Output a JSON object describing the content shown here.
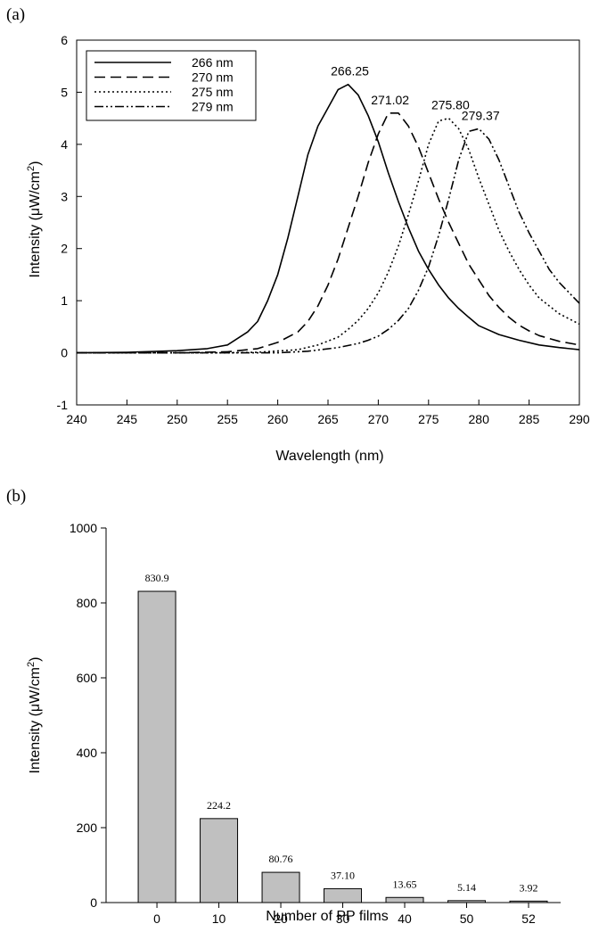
{
  "chart_data": [
    {
      "panel_label": "(a)",
      "type": "line",
      "xlabel": "Wavelength (nm)",
      "ylabel_main": "Intensity (μW/cm",
      "ylabel_sup": "2",
      "ylabel_close": ")",
      "xlim": [
        240,
        290
      ],
      "ylim": [
        -1,
        6
      ],
      "xticks": [
        "240",
        "245",
        "250",
        "255",
        "260",
        "265",
        "270",
        "275",
        "280",
        "285",
        "290"
      ],
      "yticks": [
        "-1",
        "0",
        "1",
        "2",
        "3",
        "4",
        "5",
        "6"
      ],
      "legend_position": "top-left",
      "series": [
        {
          "name": "266 nm",
          "style": "solid",
          "peak_label": "266.25",
          "points": [
            [
              240,
              0
            ],
            [
              245,
              0.01
            ],
            [
              250,
              0.04
            ],
            [
              253,
              0.08
            ],
            [
              255,
              0.15
            ],
            [
              257,
              0.4
            ],
            [
              258,
              0.6
            ],
            [
              259,
              1.0
            ],
            [
              260,
              1.5
            ],
            [
              261,
              2.2
            ],
            [
              262,
              3.0
            ],
            [
              263,
              3.8
            ],
            [
              264,
              4.35
            ],
            [
              265,
              4.7
            ],
            [
              266,
              5.05
            ],
            [
              267,
              5.15
            ],
            [
              268,
              4.95
            ],
            [
              269,
              4.55
            ],
            [
              270,
              4.05
            ],
            [
              271,
              3.45
            ],
            [
              272,
              2.9
            ],
            [
              273,
              2.4
            ],
            [
              274,
              1.95
            ],
            [
              275,
              1.6
            ],
            [
              276,
              1.3
            ],
            [
              277,
              1.05
            ],
            [
              278,
              0.85
            ],
            [
              279,
              0.68
            ],
            [
              280,
              0.52
            ],
            [
              282,
              0.35
            ],
            [
              284,
              0.24
            ],
            [
              286,
              0.15
            ],
            [
              288,
              0.1
            ],
            [
              290,
              0.06
            ]
          ]
        },
        {
          "name": "270 nm",
          "style": "dashed",
          "peak_label": "271.02",
          "points": [
            [
              240,
              0
            ],
            [
              250,
              0
            ],
            [
              255,
              0.02
            ],
            [
              258,
              0.08
            ],
            [
              260,
              0.2
            ],
            [
              262,
              0.4
            ],
            [
              263,
              0.6
            ],
            [
              264,
              0.9
            ],
            [
              265,
              1.3
            ],
            [
              266,
              1.8
            ],
            [
              267,
              2.4
            ],
            [
              268,
              3.0
            ],
            [
              269,
              3.65
            ],
            [
              270,
              4.2
            ],
            [
              271,
              4.6
            ],
            [
              272,
              4.6
            ],
            [
              273,
              4.35
            ],
            [
              274,
              3.95
            ],
            [
              275,
              3.45
            ],
            [
              276,
              2.95
            ],
            [
              277,
              2.5
            ],
            [
              278,
              2.1
            ],
            [
              279,
              1.7
            ],
            [
              280,
              1.4
            ],
            [
              281,
              1.1
            ],
            [
              282,
              0.87
            ],
            [
              283,
              0.68
            ],
            [
              284,
              0.53
            ],
            [
              285,
              0.42
            ],
            [
              286,
              0.33
            ],
            [
              288,
              0.22
            ],
            [
              290,
              0.15
            ]
          ]
        },
        {
          "name": "275 nm",
          "style": "dotted",
          "peak_label": "275.80",
          "points": [
            [
              240,
              0
            ],
            [
              255,
              0
            ],
            [
              258,
              0.01
            ],
            [
              262,
              0.06
            ],
            [
              264,
              0.15
            ],
            [
              266,
              0.3
            ],
            [
              267,
              0.45
            ],
            [
              268,
              0.62
            ],
            [
              269,
              0.85
            ],
            [
              270,
              1.15
            ],
            [
              271,
              1.55
            ],
            [
              272,
              2.05
            ],
            [
              273,
              2.65
            ],
            [
              274,
              3.3
            ],
            [
              275,
              4.0
            ],
            [
              276,
              4.45
            ],
            [
              277,
              4.5
            ],
            [
              278,
              4.3
            ],
            [
              279,
              3.9
            ],
            [
              280,
              3.35
            ],
            [
              281,
              2.85
            ],
            [
              282,
              2.35
            ],
            [
              283,
              1.95
            ],
            [
              284,
              1.6
            ],
            [
              285,
              1.3
            ],
            [
              286,
              1.05
            ],
            [
              287,
              0.9
            ],
            [
              288,
              0.75
            ],
            [
              289,
              0.65
            ],
            [
              290,
              0.55
            ]
          ]
        },
        {
          "name": "279 nm",
          "style": "dashdotdot",
          "peak_label": "279.37",
          "points": [
            [
              240,
              0
            ],
            [
              260,
              0
            ],
            [
              263,
              0.03
            ],
            [
              266,
              0.1
            ],
            [
              268,
              0.18
            ],
            [
              269,
              0.24
            ],
            [
              270,
              0.32
            ],
            [
              271,
              0.45
            ],
            [
              272,
              0.62
            ],
            [
              273,
              0.85
            ],
            [
              274,
              1.2
            ],
            [
              275,
              1.65
            ],
            [
              276,
              2.25
            ],
            [
              277,
              2.95
            ],
            [
              278,
              3.7
            ],
            [
              279,
              4.25
            ],
            [
              280,
              4.3
            ],
            [
              281,
              4.1
            ],
            [
              282,
              3.7
            ],
            [
              283,
              3.2
            ],
            [
              284,
              2.7
            ],
            [
              285,
              2.3
            ],
            [
              286,
              1.95
            ],
            [
              287,
              1.6
            ],
            [
              288,
              1.35
            ],
            [
              289,
              1.15
            ],
            [
              290,
              0.95
            ]
          ]
        }
      ]
    },
    {
      "panel_label": "(b)",
      "type": "bar",
      "xlabel": "Number of PP films",
      "ylabel_main": "Intensity (μW/cm",
      "ylabel_sup": "2",
      "ylabel_close": ")",
      "categories": [
        "0",
        "10",
        "20",
        "30",
        "40",
        "50",
        "52"
      ],
      "values": [
        830.9,
        224.2,
        80.76,
        37.1,
        13.65,
        5.14,
        3.92
      ],
      "value_labels": [
        "830.9",
        "224.2",
        "80.76",
        "37.10",
        "13.65",
        "5.14",
        "3.92"
      ],
      "ylim": [
        0,
        1000
      ],
      "yticks": [
        "0",
        "200",
        "400",
        "600",
        "800",
        "1000"
      ],
      "bar_color": "#c0c0c0"
    }
  ]
}
